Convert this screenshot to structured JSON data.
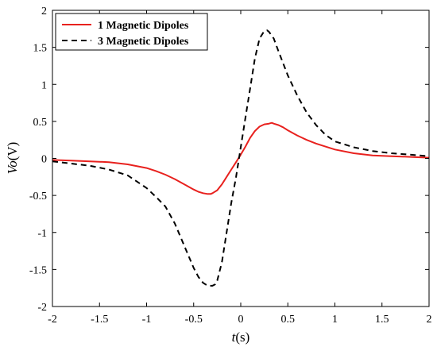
{
  "chart_data": {
    "type": "line",
    "xlabel": {
      "var": "t",
      "unit": "(s)"
    },
    "ylabel": {
      "var": "Vo",
      "unit": "(V)"
    },
    "xlim": [
      -2,
      2
    ],
    "ylim": [
      -2,
      2
    ],
    "xticks": [
      "-2",
      "-1.5",
      "-1",
      "-0.5",
      "0",
      "0.5",
      "1",
      "1.5",
      "2"
    ],
    "yticks": [
      "2",
      "1.5",
      "1",
      "0.5",
      "0",
      "-0.5",
      "-1",
      "-1.5",
      "-2"
    ],
    "legend_position": "top-left",
    "grid": false,
    "series": [
      {
        "name": "1 Magnetic Dipoles",
        "color": "#e8211e",
        "dash": "solid",
        "x": [
          -2,
          -1.8,
          -1.6,
          -1.4,
          -1.2,
          -1.0,
          -0.9,
          -0.8,
          -0.7,
          -0.6,
          -0.5,
          -0.45,
          -0.4,
          -0.35,
          -0.32,
          -0.3,
          -0.25,
          -0.2,
          -0.15,
          -0.1,
          -0.05,
          0,
          0.05,
          0.1,
          0.15,
          0.2,
          0.25,
          0.3,
          0.33,
          0.35,
          0.4,
          0.45,
          0.5,
          0.6,
          0.7,
          0.8,
          0.9,
          1.0,
          1.2,
          1.4,
          1.6,
          1.8,
          2.0
        ],
        "values": [
          -0.02,
          -0.03,
          -0.04,
          -0.05,
          -0.08,
          -0.13,
          -0.17,
          -0.22,
          -0.28,
          -0.35,
          -0.42,
          -0.45,
          -0.47,
          -0.48,
          -0.48,
          -0.47,
          -0.43,
          -0.35,
          -0.25,
          -0.15,
          -0.05,
          0.05,
          0.16,
          0.28,
          0.37,
          0.43,
          0.46,
          0.47,
          0.48,
          0.47,
          0.45,
          0.42,
          0.38,
          0.31,
          0.25,
          0.2,
          0.16,
          0.12,
          0.07,
          0.04,
          0.03,
          0.02,
          0.01
        ]
      },
      {
        "name": "3 Magnetic Dipoles",
        "color": "#000000",
        "dash": "dashed",
        "x": [
          -2,
          -1.8,
          -1.6,
          -1.4,
          -1.2,
          -1.0,
          -0.9,
          -0.8,
          -0.7,
          -0.6,
          -0.5,
          -0.45,
          -0.4,
          -0.35,
          -0.3,
          -0.27,
          -0.25,
          -0.2,
          -0.15,
          -0.1,
          -0.05,
          0,
          0.05,
          0.1,
          0.15,
          0.2,
          0.25,
          0.28,
          0.3,
          0.35,
          0.4,
          0.5,
          0.6,
          0.7,
          0.8,
          0.9,
          1.0,
          1.2,
          1.4,
          1.6,
          1.8,
          2.0
        ],
        "values": [
          -0.04,
          -0.07,
          -0.1,
          -0.15,
          -0.23,
          -0.4,
          -0.52,
          -0.65,
          -0.88,
          -1.18,
          -1.48,
          -1.6,
          -1.68,
          -1.72,
          -1.72,
          -1.7,
          -1.65,
          -1.4,
          -1.0,
          -0.6,
          -0.25,
          0.15,
          0.55,
          0.95,
          1.35,
          1.62,
          1.72,
          1.73,
          1.71,
          1.62,
          1.45,
          1.12,
          0.85,
          0.62,
          0.45,
          0.32,
          0.23,
          0.15,
          0.1,
          0.07,
          0.05,
          0.03
        ]
      }
    ]
  }
}
